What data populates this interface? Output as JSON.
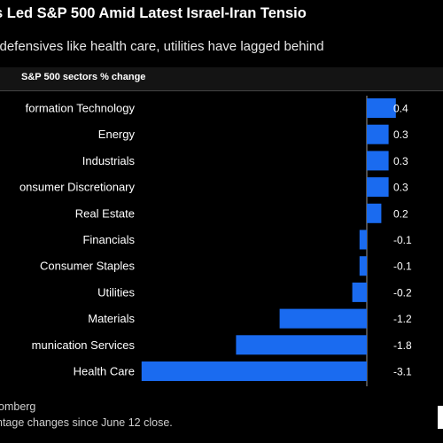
{
  "chart_data": {
    "type": "bar",
    "orientation": "horizontal",
    "title": "s Led S&P 500 Amid Latest Israel-Iran Tensio",
    "subtitle": "l defensives like health care, utilities have lagged behind",
    "header_label": "S&P 500 sectors  % change",
    "categories": [
      "formation Technology",
      "Energy",
      "Industrials",
      "onsumer Discretionary",
      "Real Estate",
      "Financials",
      "Consumer Staples",
      "Utilities",
      "Materials",
      "munication Services",
      "Health Care"
    ],
    "values": [
      0.4,
      0.3,
      0.3,
      0.3,
      0.2,
      -0.1,
      -0.1,
      -0.2,
      -1.2,
      -1.8,
      -3.1
    ],
    "value_labels": [
      "0.4",
      "0.3",
      "0.3",
      "0.3",
      "0.2",
      "-0.1",
      "-0.1",
      "-0.2",
      "-1.2",
      "-1.8",
      "-3.1"
    ],
    "bar_color": "#1a6bf0",
    "source": "omberg",
    "note": "ntage changes since June 12 close."
  }
}
